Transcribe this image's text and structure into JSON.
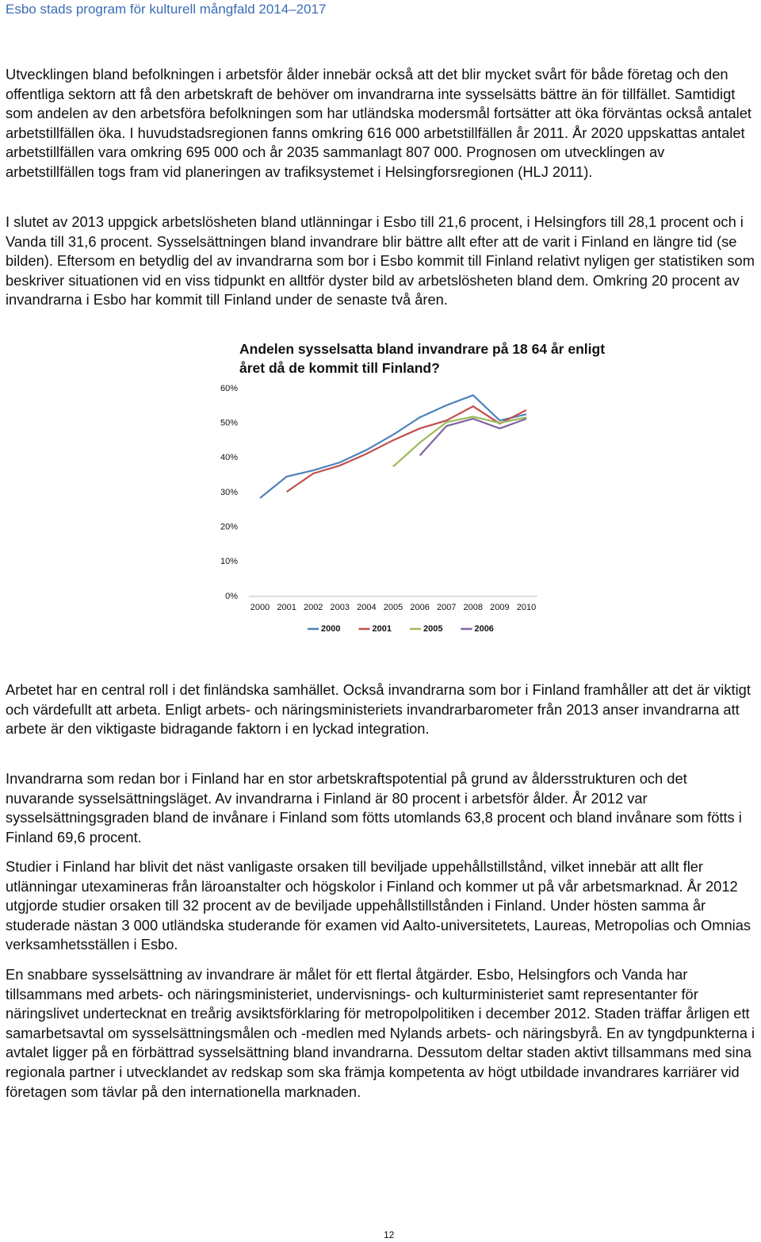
{
  "header": {
    "title": "Esbo stads program för kulturell mångfald 2014–2017"
  },
  "paragraphs": [
    "Utvecklingen bland befolkningen i arbetsför ålder innebär också att det blir mycket svårt för både företag och den offentliga sektorn att få den arbetskraft de behöver om invandrarna inte sysselsätts bättre än för tillfället. Samtidigt som andelen av den arbetsföra befolkningen som har utländska modersmål fortsätter att öka förväntas också antalet arbetstillfällen öka. I huvudstadsregionen fanns omkring 616 000 arbetstillfällen år 2011. År 2020 uppskattas antalet arbetstillfällen vara omkring 695 000 och år 2035 sammanlagt 807 000. Prognosen om utvecklingen av arbetstillfällen togs fram vid planeringen av trafiksystemet i Helsingforsregionen (HLJ 2011).",
    "I slutet av 2013 uppgick arbetslösheten bland utlänningar i Esbo till 21,6 procent, i Helsingfors till 28,1 procent och i Vanda till 31,6 procent. Sysselsättningen bland invandrare blir bättre allt efter att de varit i Finland en längre tid (se bilden). Eftersom en betydlig del av invandrarna som bor i Esbo kommit till Finland relativt nyligen ger statistiken som beskriver situationen vid en viss tidpunkt en alltför dyster bild av arbetslösheten bland dem. Omkring 20 procent av invandrarna i Esbo har kommit till Finland under de senaste två åren.",
    "Arbetet har en central roll i det finländska samhället. Också invandrarna som bor i Finland framhåller att det är viktigt och värdefullt att arbeta. Enligt arbets- och näringsministeriets invandrarbarometer från 2013 anser invandrarna att arbete är den viktigaste bidragande faktorn i en lyckad integration.",
    "Invandrarna som redan bor i Finland har en stor arbetskraftspotential på grund av åldersstrukturen och det nuvarande sysselsättningsläget. Av invandrarna i Finland är 80 procent i arbetsför ålder. År 2012 var sysselsättningsgraden bland de invånare i Finland som fötts utomlands 63,8 procent och bland invånare som fötts i Finland 69,6 procent.",
    "Studier i Finland har blivit det näst vanligaste orsaken till beviljade uppehållstillstånd, vilket innebär att allt fler utlänningar utexamineras från läroanstalter och högskolor i Finland och kommer ut på vår arbetsmarknad. År 2012 utgjorde studier orsaken till 32 procent av de beviljade uppehållstillstånden i Finland. Under hösten samma år studerade nästan 3 000 utländska studerande för examen vid Aalto-universitetets, Laureas, Metropolias och Omnias verksamhetsställen i Esbo.",
    "En snabbare sysselsättning av invandrare är målet för ett flertal åtgärder. Esbo, Helsingfors och Vanda har tillsammans med arbets- och näringsministeriet, undervisnings- och kulturministeriet samt representanter för näringslivet undertecknat en treårig avsiktsförklaring för metropolpolitiken i december 2012. Staden träffar årligen ett samarbetsavtal om sysselsättningsmålen och -medlen med Nylands arbets- och näringsbyrå. En av tyngdpunkterna i avtalet ligger på en förbättrad sysselsättning bland invandrarna. Dessutom deltar staden aktivt tillsammans med sina regionala partner i utvecklandet av redskap som ska främja kompetenta av högt utbildade invandrares karriärer vid företagen som tävlar på den internationella marknaden."
  ],
  "chart_data": {
    "type": "line",
    "title": "Andelen sysselsatta bland invandrare på 18 64 år enligt året då de kommit till Finland?",
    "categories": [
      "2000",
      "2001",
      "2002",
      "2003",
      "2004",
      "2005",
      "2006",
      "2007",
      "2008",
      "2009",
      "2010"
    ],
    "series": [
      {
        "name": "2000",
        "color": "#4f81bd",
        "values": [
          28.4,
          34.6,
          36.4,
          38.7,
          42.3,
          46.7,
          51.7,
          55.2,
          58.1,
          50.8,
          52.6
        ]
      },
      {
        "name": "2001",
        "color": "#c0504d",
        "values": [
          null,
          30.2,
          35.5,
          37.8,
          41.2,
          45.1,
          48.5,
          50.8,
          54.9,
          49.9,
          53.8
        ]
      },
      {
        "name": "2005",
        "color": "#9bbb59",
        "values": [
          null,
          null,
          null,
          null,
          null,
          37.5,
          44.4,
          50.3,
          51.9,
          50.1,
          51.7
        ]
      },
      {
        "name": "2006",
        "color": "#8064a2",
        "values": [
          null,
          null,
          null,
          null,
          null,
          null,
          40.7,
          49.2,
          51.3,
          48.5,
          51.3
        ]
      }
    ],
    "ylim": [
      0,
      60
    ],
    "yticks": [
      {
        "value": 0,
        "label": "0%"
      },
      {
        "value": 10,
        "label": "10%"
      },
      {
        "value": 20,
        "label": "20%"
      },
      {
        "value": 30,
        "label": "30%"
      },
      {
        "value": 40,
        "label": "40%"
      },
      {
        "value": 50,
        "label": "50%"
      },
      {
        "value": 60,
        "label": "60%"
      }
    ],
    "grid": false,
    "legend": "bottom"
  },
  "page_number": "12"
}
